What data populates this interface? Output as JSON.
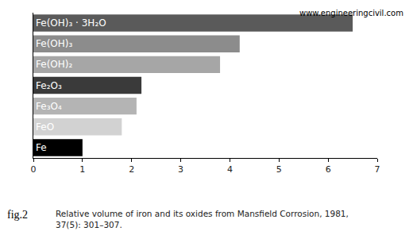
{
  "chart_data": {
    "type": "bar",
    "orientation": "horizontal",
    "categories": [
      "Fe(OH)₃ · 3H₂O",
      "Fe(OH)₃",
      "Fe(OH)₂",
      "Fe₂O₃",
      "Fe₃O₄",
      "FeO",
      "Fe"
    ],
    "values": [
      6.5,
      4.2,
      3.8,
      2.2,
      2.1,
      1.8,
      1.0
    ],
    "colors": [
      "#5a5a5a",
      "#8c8c8c",
      "#a6a6a6",
      "#3a3a3a",
      "#b4b4b4",
      "#d2d2d2",
      "#000000"
    ],
    "xlim": [
      0,
      7
    ],
    "xticks": [
      0,
      1,
      2,
      3,
      4,
      5,
      6,
      7
    ],
    "grid": false,
    "tick_labels": "x",
    "watermark": "www.engineeringcivil.com",
    "figure_label": "fig.2",
    "caption": "Relative volume of iron and its oxides from Mansfield Corrosion, 1981, 37(5): 301–307."
  }
}
